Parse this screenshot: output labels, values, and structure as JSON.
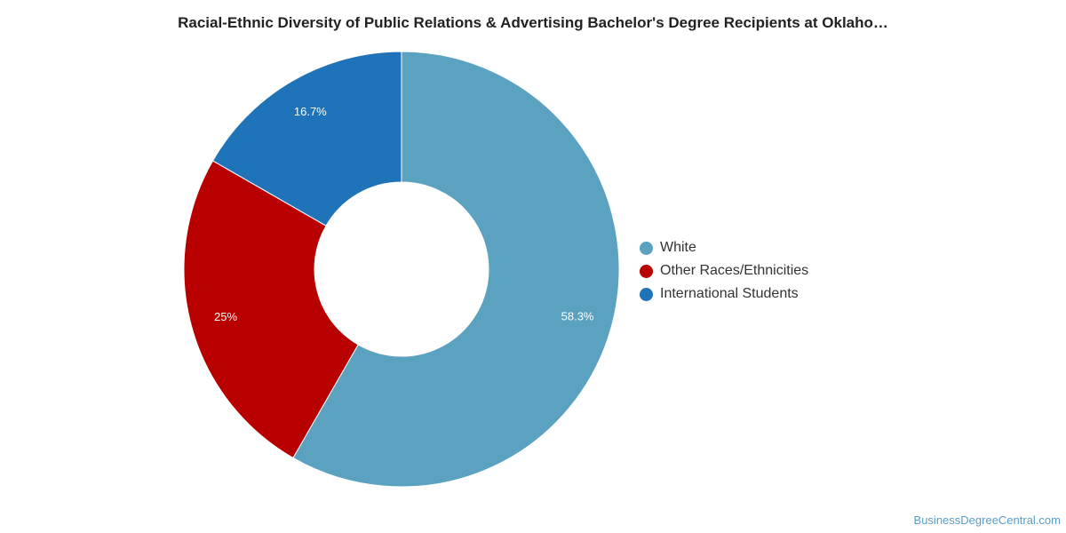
{
  "chart_data": {
    "type": "pie",
    "donut": true,
    "title": "Racial-Ethnic Diversity of Public Relations & Advertising Bachelor's Degree Recipients at Oklaho…",
    "legend_position": "right",
    "slices": [
      {
        "label": "White",
        "value": 58.3,
        "display": "58.3%",
        "color": "#5ba2c0"
      },
      {
        "label": "Other Races/Ethnicities",
        "value": 25,
        "display": "25%",
        "color": "#b80000"
      },
      {
        "label": "International Students",
        "value": 16.7,
        "display": "16.7%",
        "color": "#1f73b9"
      }
    ]
  },
  "watermark": "BusinessDegreeCentral.com"
}
